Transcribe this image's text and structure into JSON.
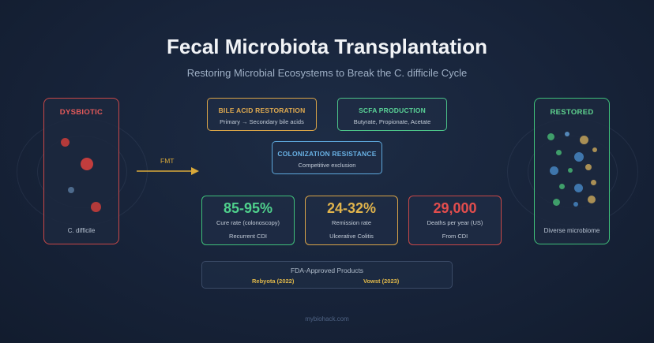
{
  "title": "Fecal Microbiota Transplantation",
  "subtitle": "Restoring Microbial Ecosystems to Break the C. difficile Cycle",
  "left_panel": {
    "title": "DYSBIOTIC",
    "caption": "C. difficile",
    "color": "#c84848"
  },
  "right_panel": {
    "title": "RESTORED",
    "caption": "Diverse microbiome",
    "color": "#3fbf7a"
  },
  "arrow": {
    "label": "FMT",
    "color": "#d9a93a"
  },
  "mechanisms": [
    {
      "title": "BILE ACID RESTORATION",
      "subtitle": "Primary → Secondary bile acids",
      "color": "#d9a448"
    },
    {
      "title": "SCFA PRODUCTION",
      "subtitle": "Butyrate, Propionate, Acetate",
      "color": "#4cc489"
    },
    {
      "title": "COLONIZATION RESISTANCE",
      "subtitle": "Competitive exclusion",
      "color": "#5ea8dc"
    }
  ],
  "stats": [
    {
      "value": "85-95%",
      "label": "Cure rate (colonoscopy)",
      "context": "Recurrent CDI",
      "color": "#4fd08c"
    },
    {
      "value": "24-32%",
      "label": "Remission rate",
      "context": "Ulcerative Colitis",
      "color": "#e1b44c"
    },
    {
      "value": "29,000",
      "label": "Deaths per year (US)",
      "context": "From CDI",
      "color": "#e24d4d"
    }
  ],
  "fda": {
    "heading": "FDA-Approved Products",
    "products": [
      "Rebyota (2022)",
      "Vowst (2023)"
    ]
  },
  "footer": "mybiohack.com"
}
